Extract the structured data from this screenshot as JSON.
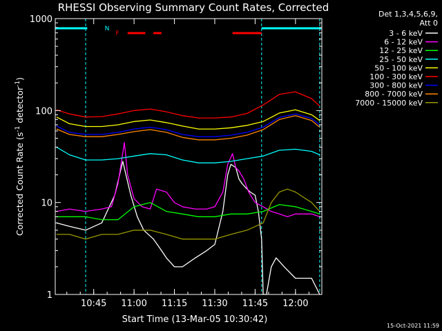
{
  "chart_data": {
    "type": "line",
    "title": "RHESSI Observing Summary Count Rates, Corrected",
    "xlabel": "Start Time (13-Mar-05 10:30:42)",
    "ylabel_main": "Corrected Count Rate (s",
    "ylabel_sup1": "-1",
    "ylabel_mid": " detector",
    "ylabel_sup2": "-1",
    "ylabel_end": ")",
    "x_range_min": [
      10.5117,
      12.1633
    ],
    "y_range": [
      1,
      1000
    ],
    "y_scale": "log",
    "x_ticks": [
      {
        "v": 10.75,
        "label": "10:45"
      },
      {
        "v": 11.0,
        "label": "11:00"
      },
      {
        "v": 11.25,
        "label": "11:15"
      },
      {
        "v": 11.5,
        "label": "11:30"
      },
      {
        "v": 11.75,
        "label": "11:45"
      },
      {
        "v": 12.0,
        "label": "12:00"
      }
    ],
    "y_ticks": [
      {
        "v": 1,
        "label": "1"
      },
      {
        "v": 10,
        "label": "10"
      },
      {
        "v": 100,
        "label": "100"
      },
      {
        "v": 1000,
        "label": "1000"
      }
    ],
    "legend_header": [
      "Det 1,3,4,5,6,9,",
      "Att 0"
    ],
    "legend_position": "right",
    "timestamp": "15-Oct-2021 11:59",
    "flags": [
      {
        "label": "N",
        "color": "#00ffff",
        "segments": [
          [
            10.5117,
            10.71
          ],
          [
            11.79,
            12.16
          ]
        ]
      },
      {
        "label": "F",
        "color": "#ff0000",
        "segments": [
          [
            10.96,
            11.07
          ],
          [
            11.12,
            11.17
          ],
          [
            11.61,
            11.79
          ]
        ]
      }
    ],
    "night_boundaries": [
      10.7,
      11.79,
      12.15
    ],
    "series": [
      {
        "name": "3 - 6 keV",
        "color": "#ffffff",
        "x": [
          10.52,
          10.6,
          10.7,
          10.8,
          10.88,
          10.93,
          10.98,
          11.02,
          11.06,
          11.12,
          11.17,
          11.2,
          11.25,
          11.3,
          11.38,
          11.45,
          11.5,
          11.55,
          11.58,
          11.6,
          11.63,
          11.65,
          11.67,
          11.7,
          11.72,
          11.75,
          11.77,
          11.79,
          11.8,
          11.82,
          11.85,
          11.88,
          11.93,
          12.0,
          12.1,
          12.15
        ],
        "y": [
          6,
          5.5,
          5,
          6,
          12,
          28,
          12,
          7,
          5,
          4,
          3,
          2.5,
          2,
          2,
          2.5,
          3,
          3.5,
          8,
          20,
          26,
          24,
          18,
          16,
          14,
          13,
          12,
          8,
          4,
          1,
          1,
          2,
          2.5,
          2,
          1.5,
          1.5,
          1
        ]
      },
      {
        "name": "6 - 12 keV",
        "color": "#ff00ff",
        "x": [
          10.52,
          10.6,
          10.7,
          10.8,
          10.86,
          10.9,
          10.94,
          10.96,
          11.0,
          11.05,
          11.1,
          11.14,
          11.2,
          11.25,
          11.3,
          11.38,
          11.45,
          11.5,
          11.55,
          11.58,
          11.61,
          11.63,
          11.65,
          11.68,
          11.71,
          11.75,
          11.8,
          11.85,
          11.9,
          11.95,
          12.0,
          12.1,
          12.15
        ],
        "y": [
          8,
          8.5,
          8,
          8.5,
          9,
          16,
          45,
          20,
          11,
          9,
          8.5,
          14,
          13,
          10,
          9,
          8.5,
          8.5,
          9,
          13,
          26,
          34,
          24,
          22,
          18,
          13,
          10,
          9,
          8,
          7.5,
          7,
          7.5,
          7.5,
          7
        ]
      },
      {
        "name": "12 - 25 keV",
        "color": "#00ff00",
        "x": [
          10.52,
          10.6,
          10.7,
          10.8,
          10.9,
          11.0,
          11.1,
          11.2,
          11.3,
          11.4,
          11.5,
          11.6,
          11.7,
          11.8,
          11.9,
          12.0,
          12.1,
          12.15
        ],
        "y": [
          7,
          7,
          7,
          6.5,
          6.5,
          9,
          10,
          8,
          7.5,
          7,
          7,
          7.5,
          7.5,
          8,
          9.5,
          9,
          8,
          7.5
        ]
      },
      {
        "name": "25 - 50 keV",
        "color": "#00ffff",
        "x": [
          10.52,
          10.6,
          10.7,
          10.8,
          10.9,
          11.0,
          11.1,
          11.2,
          11.3,
          11.4,
          11.5,
          11.6,
          11.7,
          11.8,
          11.9,
          12.0,
          12.1,
          12.15
        ],
        "y": [
          40,
          33,
          29,
          29,
          30,
          32,
          34,
          33,
          29,
          27,
          27,
          28,
          30,
          32,
          37,
          38,
          36,
          33
        ]
      },
      {
        "name": "50 - 100 keV",
        "color": "#ffff00",
        "x": [
          10.52,
          10.6,
          10.7,
          10.8,
          10.9,
          11.0,
          11.1,
          11.2,
          11.3,
          11.4,
          11.5,
          11.6,
          11.7,
          11.8,
          11.9,
          12.0,
          12.1,
          12.15
        ],
        "y": [
          85,
          72,
          67,
          67,
          70,
          76,
          79,
          74,
          68,
          63,
          63,
          65,
          69,
          76,
          94,
          102,
          90,
          78
        ]
      },
      {
        "name": "100 - 300 keV",
        "color": "#ff0000",
        "x": [
          10.52,
          10.6,
          10.7,
          10.8,
          10.9,
          11.0,
          11.1,
          11.2,
          11.3,
          11.4,
          11.5,
          11.6,
          11.7,
          11.8,
          11.9,
          12.0,
          12.1,
          12.15
        ],
        "y": [
          102,
          92,
          85,
          86,
          92,
          100,
          104,
          97,
          88,
          83,
          83,
          85,
          93,
          115,
          150,
          160,
          135,
          112
        ]
      },
      {
        "name": "300 - 800 keV",
        "color": "#0000ff",
        "x": [
          10.52,
          10.6,
          10.7,
          10.8,
          10.9,
          11.0,
          11.1,
          11.2,
          11.3,
          11.4,
          11.5,
          11.6,
          11.7,
          11.8,
          11.9,
          12.0,
          12.1,
          12.15
        ],
        "y": [
          68,
          58,
          55,
          55,
          58,
          63,
          66,
          62,
          55,
          52,
          52,
          54,
          58,
          66,
          84,
          92,
          82,
          70
        ]
      },
      {
        "name": "800 - 7000 keV",
        "color": "#ff8800",
        "x": [
          10.52,
          10.6,
          10.7,
          10.8,
          10.9,
          11.0,
          11.1,
          11.2,
          11.3,
          11.4,
          11.5,
          11.6,
          11.7,
          11.8,
          11.9,
          12.0,
          12.1,
          12.15
        ],
        "y": [
          63,
          55,
          52,
          52,
          55,
          59,
          62,
          58,
          51,
          48,
          48,
          50,
          54,
          62,
          80,
          88,
          78,
          66
        ]
      },
      {
        "name": "7000 - 15000 keV",
        "color": "#999900",
        "x": [
          10.52,
          10.6,
          10.7,
          10.8,
          10.9,
          11.0,
          11.1,
          11.2,
          11.3,
          11.4,
          11.5,
          11.6,
          11.7,
          11.8,
          11.85,
          11.9,
          11.95,
          12.0,
          12.1,
          12.15
        ],
        "y": [
          4.5,
          4.5,
          4,
          4.5,
          4.5,
          5,
          5,
          4.5,
          4,
          4,
          4,
          4.5,
          5,
          6,
          10,
          13,
          14,
          13,
          10,
          8
        ]
      }
    ]
  }
}
